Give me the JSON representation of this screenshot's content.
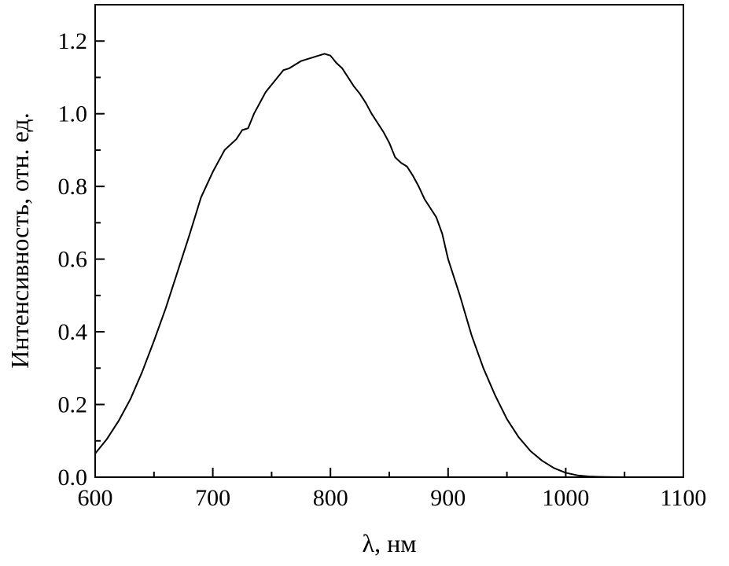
{
  "chart_data": {
    "type": "line",
    "title": "",
    "xlabel": "λ, нм",
    "ylabel": "Интенсивность, отн. ед.",
    "xlim": [
      600,
      1100
    ],
    "ylim": [
      0,
      1.3
    ],
    "x_ticks": [
      600,
      700,
      800,
      900,
      1000,
      1100
    ],
    "x_tick_labels": [
      "600",
      "700",
      "800",
      "900",
      "1000",
      "1100"
    ],
    "y_ticks": [
      0,
      0.2,
      0.4,
      0.6,
      0.8,
      1.0,
      1.2
    ],
    "y_tick_labels": [
      "0.0",
      "0.2",
      "0.4",
      "0.6",
      "0.8",
      "1.0",
      "1.2"
    ],
    "grid": false,
    "line_color": "#000000",
    "series": [
      {
        "x": [
          600,
          610,
          620,
          630,
          640,
          650,
          660,
          670,
          680,
          690,
          700,
          710,
          720,
          725,
          730,
          735,
          740,
          745,
          750,
          755,
          760,
          765,
          770,
          775,
          780,
          785,
          790,
          795,
          800,
          805,
          810,
          815,
          820,
          825,
          830,
          835,
          840,
          845,
          850,
          855,
          860,
          865,
          870,
          875,
          880,
          885,
          890,
          895,
          900,
          910,
          920,
          930,
          940,
          950,
          960,
          970,
          980,
          990,
          1000,
          1010,
          1020,
          1030,
          1040,
          1050,
          1060,
          1070,
          1080,
          1090,
          1100
        ],
        "y": [
          0.065,
          0.105,
          0.155,
          0.215,
          0.29,
          0.375,
          0.465,
          0.565,
          0.665,
          0.77,
          0.84,
          0.9,
          0.93,
          0.955,
          0.96,
          1.0,
          1.03,
          1.06,
          1.08,
          1.1,
          1.12,
          1.125,
          1.135,
          1.145,
          1.15,
          1.155,
          1.16,
          1.165,
          1.16,
          1.14,
          1.125,
          1.1,
          1.075,
          1.055,
          1.03,
          1.0,
          0.975,
          0.95,
          0.92,
          0.88,
          0.865,
          0.855,
          0.83,
          0.8,
          0.765,
          0.74,
          0.715,
          0.67,
          0.6,
          0.5,
          0.39,
          0.3,
          0.225,
          0.16,
          0.11,
          0.072,
          0.045,
          0.025,
          0.012,
          0.005,
          0.002,
          0.0008,
          0.0003,
          0.0001,
          0.0,
          0.0,
          0.0,
          0.0,
          0.0
        ]
      }
    ]
  }
}
